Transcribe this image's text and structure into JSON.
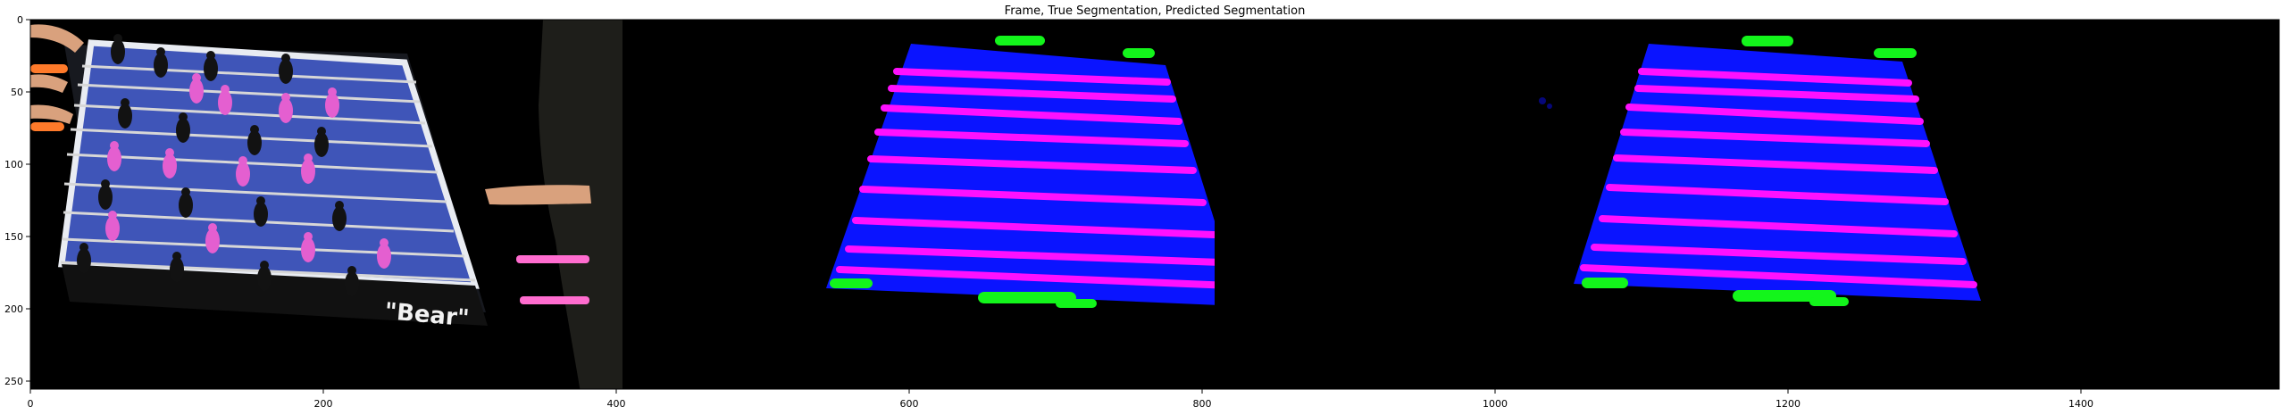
{
  "figure": {
    "title": "Frame, True Segmentation, Predicted Segmentation",
    "x_ticks": [
      "0",
      "200",
      "400",
      "600",
      "800",
      "1000",
      "1200",
      "1400"
    ],
    "y_ticks": [
      "0",
      "50",
      "100",
      "150",
      "200",
      "250"
    ],
    "panels": [
      "frame",
      "true-segmentation",
      "predicted-segmentation"
    ],
    "colors": {
      "background": "#000000",
      "table_class": "#0a14ff",
      "rod_class": "#ff10ff",
      "player_class": "#13f51b",
      "frame_field": "#3f55b8",
      "frame_border": "#e9ecf2",
      "figure_pink": "#e45fd0",
      "figure_black": "#121212",
      "hand_orange": "#ff7a2a",
      "skin": "#d9a17d",
      "wood": "#111111",
      "text_white": "#f2f2f2"
    },
    "frame_text": "\"Bear\""
  }
}
